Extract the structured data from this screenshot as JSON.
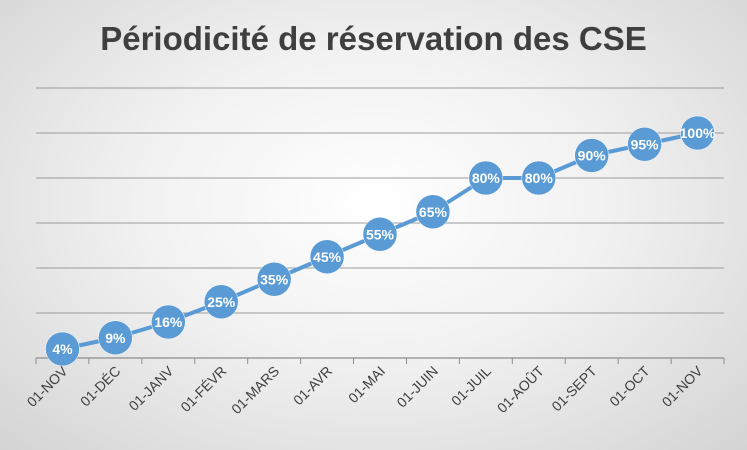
{
  "chart_data": {
    "type": "line",
    "title": "Périodicité de réservation des CSE",
    "categories": [
      "01-NOV",
      "01-DÉC",
      "01-JANV",
      "01-FÉVR",
      "01-MARS",
      "01-AVR",
      "01-MAI",
      "01-JUIN",
      "01-JUIL",
      "01-AOÛT",
      "01-SEPT",
      "01-OCT",
      "01-NOV"
    ],
    "series": [
      {
        "values": [
          4,
          9,
          16,
          25,
          35,
          45,
          55,
          65,
          80,
          80,
          90,
          95,
          100
        ],
        "labels": [
          "4%",
          "9%",
          "16%",
          "25%",
          "35%",
          "45%",
          "55%",
          "65%",
          "80%",
          "80%",
          "90%",
          "95%",
          "100%"
        ],
        "color": "#5b9bd5"
      }
    ],
    "ylim": [
      0,
      120
    ],
    "grid": true,
    "legend": "none"
  }
}
